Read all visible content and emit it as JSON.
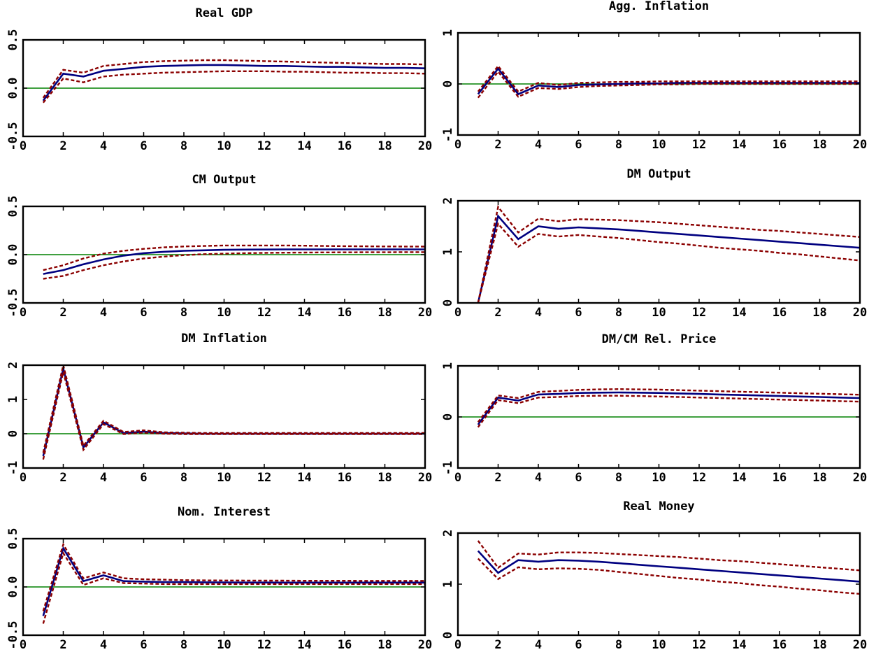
{
  "figure": {
    "colors": {
      "point_estimate": "#000080",
      "bands": "#8b0000",
      "zero_line": "#008000",
      "frame": "#000000"
    }
  },
  "chart_data": [
    {
      "type": "line",
      "title": "Real GDP",
      "x": [
        1,
        2,
        3,
        4,
        5,
        6,
        7,
        8,
        9,
        10,
        11,
        12,
        13,
        14,
        15,
        16,
        17,
        18,
        19,
        20
      ],
      "xticks": [
        0,
        2,
        4,
        6,
        8,
        10,
        12,
        14,
        16,
        18,
        20
      ],
      "xlim": [
        0,
        20
      ],
      "ylim": [
        -0.5,
        0.5
      ],
      "yticks": [
        "-0.5",
        "0.0",
        "0.5"
      ],
      "yticks_num": [
        -0.5,
        0.0,
        0.5
      ],
      "zero_line": 0,
      "series": [
        {
          "values": [
            -0.13,
            0.15,
            0.12,
            0.18,
            0.2,
            0.22,
            0.23,
            0.235,
            0.24,
            0.24,
            0.235,
            0.23,
            0.23,
            0.225,
            0.22,
            0.22,
            0.215,
            0.21,
            0.21,
            0.205
          ]
        },
        {
          "values": [
            -0.1,
            0.19,
            0.16,
            0.23,
            0.25,
            0.27,
            0.28,
            0.285,
            0.29,
            0.29,
            0.285,
            0.28,
            0.275,
            0.27,
            0.265,
            0.26,
            0.255,
            0.25,
            0.25,
            0.245
          ]
        },
        {
          "values": [
            -0.15,
            0.1,
            0.06,
            0.12,
            0.14,
            0.15,
            0.16,
            0.165,
            0.17,
            0.175,
            0.175,
            0.175,
            0.17,
            0.17,
            0.165,
            0.16,
            0.16,
            0.155,
            0.155,
            0.15
          ]
        }
      ]
    },
    {
      "type": "line",
      "title": "Agg. Inflation",
      "x": [
        1,
        2,
        3,
        4,
        5,
        6,
        7,
        8,
        9,
        10,
        11,
        12,
        13,
        14,
        15,
        16,
        17,
        18,
        19,
        20
      ],
      "xticks": [
        0,
        2,
        4,
        6,
        8,
        10,
        12,
        14,
        16,
        18,
        20
      ],
      "xlim": [
        0,
        20
      ],
      "ylim": [
        -1,
        1
      ],
      "yticks": [
        "-1",
        "0",
        "1"
      ],
      "yticks_num": [
        -1,
        0,
        1
      ],
      "zero_line": 0,
      "series": [
        {
          "values": [
            -0.2,
            0.3,
            -0.2,
            -0.03,
            -0.06,
            -0.02,
            -0.01,
            0,
            0.01,
            0.01,
            0.02,
            0.02,
            0.02,
            0.02,
            0.02,
            0.02,
            0.02,
            0.02,
            0.02,
            0.02
          ]
        },
        {
          "values": [
            -0.15,
            0.35,
            -0.15,
            0.02,
            -0.02,
            0.02,
            0.03,
            0.04,
            0.04,
            0.05,
            0.05,
            0.05,
            0.05,
            0.05,
            0.05,
            0.05,
            0.05,
            0.05,
            0.05,
            0.05
          ]
        },
        {
          "values": [
            -0.27,
            0.24,
            -0.25,
            -0.08,
            -0.1,
            -0.06,
            -0.04,
            -0.03,
            -0.02,
            -0.01,
            -0.01,
            0,
            0,
            0,
            0,
            0,
            0,
            0,
            0,
            0
          ]
        }
      ]
    },
    {
      "type": "line",
      "title": "CM Output",
      "x": [
        1,
        2,
        3,
        4,
        5,
        6,
        7,
        8,
        9,
        10,
        11,
        12,
        13,
        14,
        15,
        16,
        17,
        18,
        19,
        20
      ],
      "xticks": [
        0,
        2,
        4,
        6,
        8,
        10,
        12,
        14,
        16,
        18,
        20
      ],
      "xlim": [
        0,
        20
      ],
      "ylim": [
        -0.5,
        0.5
      ],
      "yticks": [
        "-0.5",
        "0.0",
        "0.5"
      ],
      "yticks_num": [
        -0.5,
        0.0,
        0.5
      ],
      "zero_line": 0,
      "series": [
        {
          "values": [
            -0.2,
            -0.16,
            -0.1,
            -0.05,
            -0.01,
            0.015,
            0.03,
            0.04,
            0.045,
            0.05,
            0.052,
            0.053,
            0.054,
            0.054,
            0.054,
            0.054,
            0.054,
            0.054,
            0.054,
            0.054
          ]
        },
        {
          "values": [
            -0.16,
            -0.11,
            -0.04,
            0.01,
            0.04,
            0.06,
            0.075,
            0.085,
            0.09,
            0.095,
            0.095,
            0.095,
            0.095,
            0.093,
            0.09,
            0.088,
            0.086,
            0.085,
            0.084,
            0.083
          ]
        },
        {
          "values": [
            -0.25,
            -0.22,
            -0.16,
            -0.11,
            -0.07,
            -0.04,
            -0.02,
            -0.005,
            0.005,
            0.01,
            0.015,
            0.018,
            0.02,
            0.022,
            0.023,
            0.024,
            0.025,
            0.025,
            0.026,
            0.026
          ]
        }
      ]
    },
    {
      "type": "line",
      "title": "DM Output",
      "x": [
        1,
        2,
        3,
        4,
        5,
        6,
        7,
        8,
        9,
        10,
        11,
        12,
        13,
        14,
        15,
        16,
        17,
        18,
        19,
        20
      ],
      "xticks": [
        0,
        2,
        4,
        6,
        8,
        10,
        12,
        14,
        16,
        18,
        20
      ],
      "xlim": [
        0,
        20
      ],
      "ylim": [
        0,
        2
      ],
      "yticks": [
        "0",
        "1",
        "2"
      ],
      "yticks_num": [
        0,
        1,
        2
      ],
      "zero_line": 0,
      "series": [
        {
          "values": [
            0,
            1.7,
            1.25,
            1.5,
            1.45,
            1.48,
            1.46,
            1.44,
            1.41,
            1.38,
            1.35,
            1.32,
            1.29,
            1.26,
            1.23,
            1.2,
            1.17,
            1.14,
            1.11,
            1.08
          ]
        },
        {
          "values": [
            0,
            1.88,
            1.38,
            1.65,
            1.6,
            1.64,
            1.63,
            1.62,
            1.6,
            1.58,
            1.55,
            1.52,
            1.49,
            1.46,
            1.43,
            1.41,
            1.38,
            1.35,
            1.32,
            1.29
          ]
        },
        {
          "values": [
            0,
            1.55,
            1.1,
            1.35,
            1.3,
            1.33,
            1.3,
            1.27,
            1.23,
            1.19,
            1.16,
            1.12,
            1.08,
            1.05,
            1.02,
            0.98,
            0.95,
            0.91,
            0.87,
            0.83
          ]
        }
      ]
    },
    {
      "type": "line",
      "title": "DM Inflation",
      "x": [
        1,
        2,
        3,
        4,
        5,
        6,
        7,
        8,
        9,
        10,
        11,
        12,
        13,
        14,
        15,
        16,
        17,
        18,
        19,
        20
      ],
      "xticks": [
        0,
        2,
        4,
        6,
        8,
        10,
        12,
        14,
        16,
        18,
        20
      ],
      "xlim": [
        0,
        20
      ],
      "ylim": [
        -1,
        2
      ],
      "yticks": [
        "-1",
        "0",
        "1",
        "2"
      ],
      "yticks_num": [
        -1,
        0,
        1,
        2
      ],
      "zero_line": 0,
      "series": [
        {
          "values": [
            -0.65,
            1.9,
            -0.4,
            0.33,
            0.02,
            0.06,
            0.02,
            0.01,
            0,
            0,
            0,
            0,
            0,
            0,
            0,
            0,
            0,
            0,
            0,
            0
          ]
        },
        {
          "values": [
            -0.55,
            2.0,
            -0.35,
            0.38,
            0.05,
            0.1,
            0.04,
            0.03,
            0.02,
            0.02,
            0.02,
            0.02,
            0.02,
            0.02,
            0.02,
            0.02,
            0.02,
            0.02,
            0.02,
            0.02
          ]
        },
        {
          "values": [
            -0.75,
            1.8,
            -0.47,
            0.28,
            -0.01,
            0.03,
            0,
            -0.01,
            -0.01,
            -0.01,
            -0.01,
            -0.01,
            -0.01,
            -0.01,
            -0.01,
            -0.01,
            -0.01,
            -0.01,
            -0.01,
            -0.01
          ]
        }
      ]
    },
    {
      "type": "line",
      "title": "DM/CM Rel. Price",
      "x": [
        1,
        2,
        3,
        4,
        5,
        6,
        7,
        8,
        9,
        10,
        11,
        12,
        13,
        14,
        15,
        16,
        17,
        18,
        19,
        20
      ],
      "xticks": [
        0,
        2,
        4,
        6,
        8,
        10,
        12,
        14,
        16,
        18,
        20
      ],
      "xlim": [
        0,
        20
      ],
      "ylim": [
        -1,
        1
      ],
      "yticks": [
        "-1",
        "0",
        "1"
      ],
      "yticks_num": [
        -1,
        0,
        1
      ],
      "zero_line": 0,
      "series": [
        {
          "values": [
            -0.15,
            0.38,
            0.32,
            0.44,
            0.45,
            0.47,
            0.475,
            0.48,
            0.475,
            0.47,
            0.46,
            0.45,
            0.44,
            0.43,
            0.42,
            0.41,
            0.4,
            0.39,
            0.38,
            0.37
          ]
        },
        {
          "values": [
            -0.1,
            0.42,
            0.37,
            0.49,
            0.51,
            0.53,
            0.54,
            0.545,
            0.54,
            0.535,
            0.525,
            0.515,
            0.505,
            0.495,
            0.485,
            0.475,
            0.465,
            0.455,
            0.445,
            0.435
          ]
        },
        {
          "values": [
            -0.2,
            0.33,
            0.27,
            0.38,
            0.39,
            0.41,
            0.415,
            0.415,
            0.41,
            0.4,
            0.39,
            0.38,
            0.37,
            0.36,
            0.35,
            0.34,
            0.33,
            0.32,
            0.31,
            0.3
          ]
        }
      ]
    },
    {
      "type": "line",
      "title": "Nom. Interest",
      "x": [
        1,
        2,
        3,
        4,
        5,
        6,
        7,
        8,
        9,
        10,
        11,
        12,
        13,
        14,
        15,
        16,
        17,
        18,
        19,
        20
      ],
      "xticks": [
        0,
        2,
        4,
        6,
        8,
        10,
        12,
        14,
        16,
        18,
        20
      ],
      "xlim": [
        0,
        20
      ],
      "ylim": [
        -0.5,
        0.5
      ],
      "yticks": [
        "-0.5",
        "0.0",
        "0.5"
      ],
      "yticks_num": [
        -0.5,
        0.0,
        0.5
      ],
      "zero_line": 0,
      "series": [
        {
          "values": [
            -0.3,
            0.4,
            0.06,
            0.12,
            0.06,
            0.055,
            0.05,
            0.05,
            0.048,
            0.047,
            0.046,
            0.046,
            0.045,
            0.045,
            0.045,
            0.045,
            0.045,
            0.045,
            0.045,
            0.045
          ]
        },
        {
          "values": [
            -0.25,
            0.44,
            0.09,
            0.15,
            0.09,
            0.08,
            0.075,
            0.07,
            0.068,
            0.067,
            0.066,
            0.065,
            0.065,
            0.064,
            0.064,
            0.064,
            0.063,
            0.063,
            0.063,
            0.063
          ]
        },
        {
          "values": [
            -0.38,
            0.35,
            0.02,
            0.09,
            0.04,
            0.035,
            0.03,
            0.03,
            0.03,
            0.03,
            0.03,
            0.03,
            0.03,
            0.03,
            0.03,
            0.03,
            0.03,
            0.03,
            0.03,
            0.03
          ]
        }
      ]
    },
    {
      "type": "line",
      "title": "Real Money",
      "x": [
        1,
        2,
        3,
        4,
        5,
        6,
        7,
        8,
        9,
        10,
        11,
        12,
        13,
        14,
        15,
        16,
        17,
        18,
        19,
        20
      ],
      "xticks": [
        0,
        2,
        4,
        6,
        8,
        10,
        12,
        14,
        16,
        18,
        20
      ],
      "xlim": [
        0,
        20
      ],
      "ylim": [
        0,
        2
      ],
      "yticks": [
        "0",
        "1",
        "2"
      ],
      "yticks_num": [
        0,
        1,
        2
      ],
      "zero_line": 0,
      "series": [
        {
          "values": [
            1.65,
            1.22,
            1.47,
            1.44,
            1.47,
            1.46,
            1.44,
            1.41,
            1.38,
            1.35,
            1.32,
            1.29,
            1.26,
            1.23,
            1.2,
            1.17,
            1.14,
            1.11,
            1.08,
            1.05
          ]
        },
        {
          "values": [
            1.85,
            1.32,
            1.6,
            1.58,
            1.62,
            1.62,
            1.61,
            1.59,
            1.57,
            1.55,
            1.53,
            1.5,
            1.47,
            1.45,
            1.42,
            1.39,
            1.36,
            1.33,
            1.3,
            1.27
          ]
        },
        {
          "values": [
            1.5,
            1.1,
            1.33,
            1.29,
            1.31,
            1.3,
            1.28,
            1.24,
            1.2,
            1.16,
            1.12,
            1.09,
            1.05,
            1.02,
            0.98,
            0.95,
            0.91,
            0.88,
            0.84,
            0.81
          ]
        }
      ]
    }
  ]
}
